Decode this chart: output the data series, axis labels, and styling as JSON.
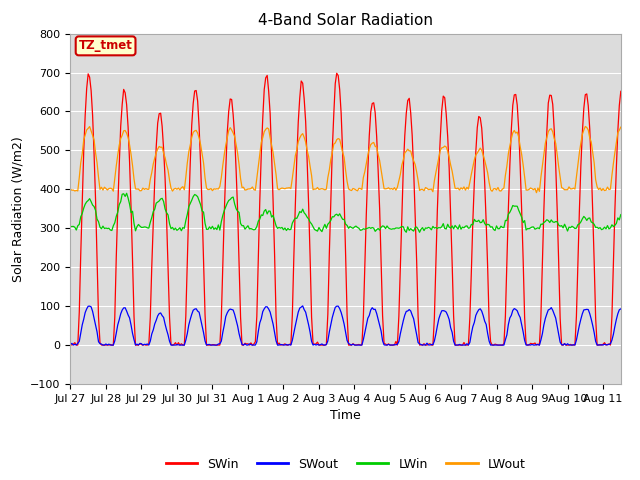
{
  "title": "4-Band Solar Radiation",
  "xlabel": "Time",
  "ylabel": "Solar Radiation (W/m2)",
  "ylim": [
    -100,
    800
  ],
  "yticks": [
    -100,
    0,
    100,
    200,
    300,
    400,
    500,
    600,
    700,
    800
  ],
  "xtick_labels": [
    "Jul 27",
    "Jul 28",
    "Jul 29",
    "Jul 30",
    "Jul 31",
    "Aug 1",
    "Aug 2",
    "Aug 3",
    "Aug 4",
    "Aug 5",
    "Aug 6",
    "Aug 7",
    "Aug 8",
    "Aug 9",
    "Aug 10",
    "Aug 11"
  ],
  "annotation_label": "TZ_tmet",
  "annotation_box_color": "#ffffcc",
  "annotation_border_color": "#cc0000",
  "annotation_text_color": "#cc0000",
  "colors": {
    "SWin": "#ff0000",
    "SWout": "#0000ff",
    "LWin": "#00cc00",
    "LWout": "#ff9900"
  },
  "bg_color": "#dcdcdc",
  "num_days": 15.5,
  "swin_peaks": [
    700,
    660,
    600,
    660,
    635,
    695,
    675,
    700,
    630,
    635,
    635,
    590,
    650,
    650,
    650
  ],
  "swout_peaks": [
    100,
    95,
    80,
    95,
    95,
    100,
    100,
    100,
    95,
    90,
    90,
    90,
    95,
    95,
    95
  ],
  "lwout_baseline": 400,
  "lwout_peaks": [
    560,
    550,
    510,
    555,
    555,
    555,
    540,
    530,
    520,
    505,
    510,
    500,
    550,
    555,
    560
  ],
  "lwin_baseline": 300,
  "lwin_peaks": [
    370,
    385,
    375,
    385,
    375,
    345,
    340,
    335,
    280,
    275,
    305,
    320,
    355,
    320,
    325
  ]
}
